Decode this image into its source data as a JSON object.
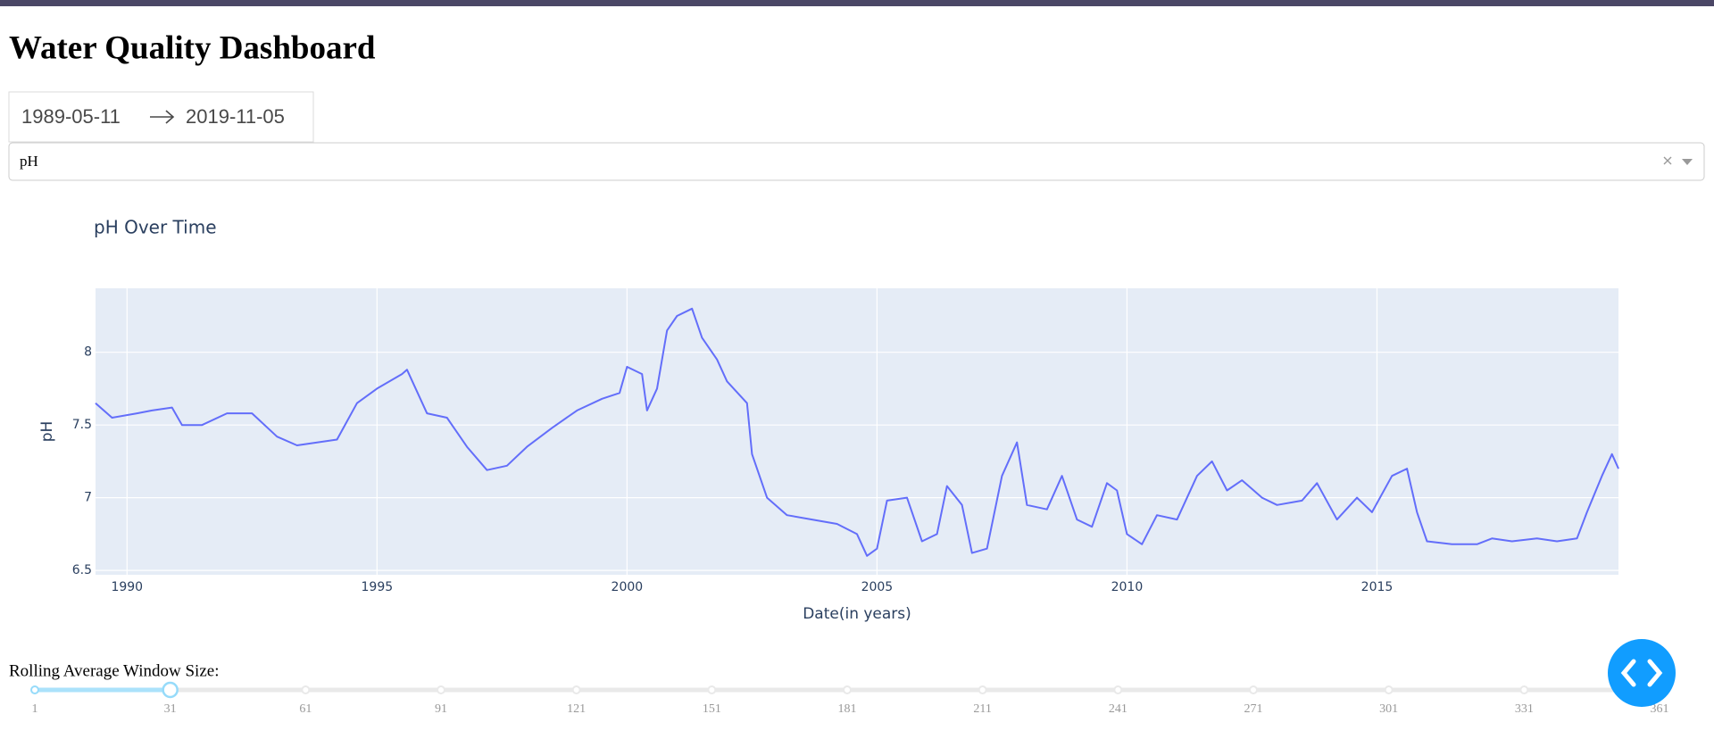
{
  "header": {
    "title": "Water Quality Dashboard"
  },
  "date_range": {
    "start": "1989-05-11",
    "end": "2019-11-05"
  },
  "dropdown": {
    "value": "pH"
  },
  "chart_data": {
    "type": "line",
    "title": "pH  Over Time",
    "x_label": "Date(in years)",
    "y_label": "pH",
    "x": [
      1989.37,
      1989.7,
      1990.2,
      1990.5,
      1990.9,
      1991.1,
      1991.5,
      1992.0,
      1992.5,
      1993.0,
      1993.4,
      1993.8,
      1994.2,
      1994.6,
      1995.0,
      1995.5,
      1995.6,
      1996.0,
      1996.4,
      1996.8,
      1997.2,
      1997.6,
      1998.0,
      1998.5,
      1999.0,
      1999.5,
      1999.85,
      2000.0,
      2000.3,
      2000.4,
      2000.6,
      2000.8,
      2001.0,
      2001.3,
      2001.5,
      2001.8,
      2002.0,
      2002.4,
      2002.5,
      2002.8,
      2003.2,
      2003.7,
      2004.2,
      2004.6,
      2004.8,
      2005.0,
      2005.2,
      2005.6,
      2005.9,
      2006.2,
      2006.4,
      2006.7,
      2006.9,
      2007.2,
      2007.5,
      2007.8,
      2008.0,
      2008.4,
      2008.7,
      2009.0,
      2009.3,
      2009.6,
      2009.8,
      2010.0,
      2010.3,
      2010.6,
      2011.0,
      2011.4,
      2011.7,
      2012.0,
      2012.3,
      2012.7,
      2013.0,
      2013.5,
      2013.8,
      2014.2,
      2014.6,
      2014.9,
      2015.3,
      2015.6,
      2015.8,
      2016.0,
      2016.5,
      2017.0,
      2017.3,
      2017.7,
      2018.2,
      2018.6,
      2019.0,
      2019.2,
      2019.5,
      2019.7,
      2019.83
    ],
    "series": [
      {
        "color": "#636efa",
        "values": [
          7.65,
          7.55,
          7.58,
          7.6,
          7.62,
          7.5,
          7.5,
          7.58,
          7.58,
          7.42,
          7.36,
          7.38,
          7.4,
          7.65,
          7.75,
          7.85,
          7.88,
          7.58,
          7.55,
          7.35,
          7.19,
          7.22,
          7.35,
          7.48,
          7.6,
          7.68,
          7.72,
          7.9,
          7.85,
          7.6,
          7.75,
          8.15,
          8.25,
          8.3,
          8.1,
          7.95,
          7.8,
          7.65,
          7.3,
          7.0,
          6.88,
          6.85,
          6.82,
          6.75,
          6.6,
          6.65,
          6.98,
          7.0,
          6.7,
          6.75,
          7.08,
          6.95,
          6.62,
          6.65,
          7.15,
          7.38,
          6.95,
          6.92,
          7.15,
          6.85,
          6.8,
          7.1,
          7.05,
          6.75,
          6.68,
          6.88,
          6.85,
          7.15,
          7.25,
          7.05,
          7.12,
          7.0,
          6.95,
          6.98,
          7.1,
          6.85,
          7.0,
          6.9,
          7.15,
          7.2,
          6.9,
          6.7,
          6.68,
          6.68,
          6.72,
          6.7,
          6.72,
          6.7,
          6.72,
          6.9,
          7.15,
          7.3,
          7.2
        ]
      }
    ],
    "xlim": [
      1989.37,
      2019.83
    ],
    "xticks": [
      1990,
      1995,
      2000,
      2005,
      2010,
      2015
    ],
    "ylim": [
      6.47,
      8.44
    ],
    "yticks": [
      6.5,
      7,
      7.5,
      8
    ],
    "grid": true
  },
  "slider": {
    "label": "Rolling Average Window Size:",
    "marks": [
      1,
      31,
      61,
      91,
      121,
      151,
      181,
      211,
      241,
      271,
      301,
      331,
      361
    ],
    "value": 31
  }
}
